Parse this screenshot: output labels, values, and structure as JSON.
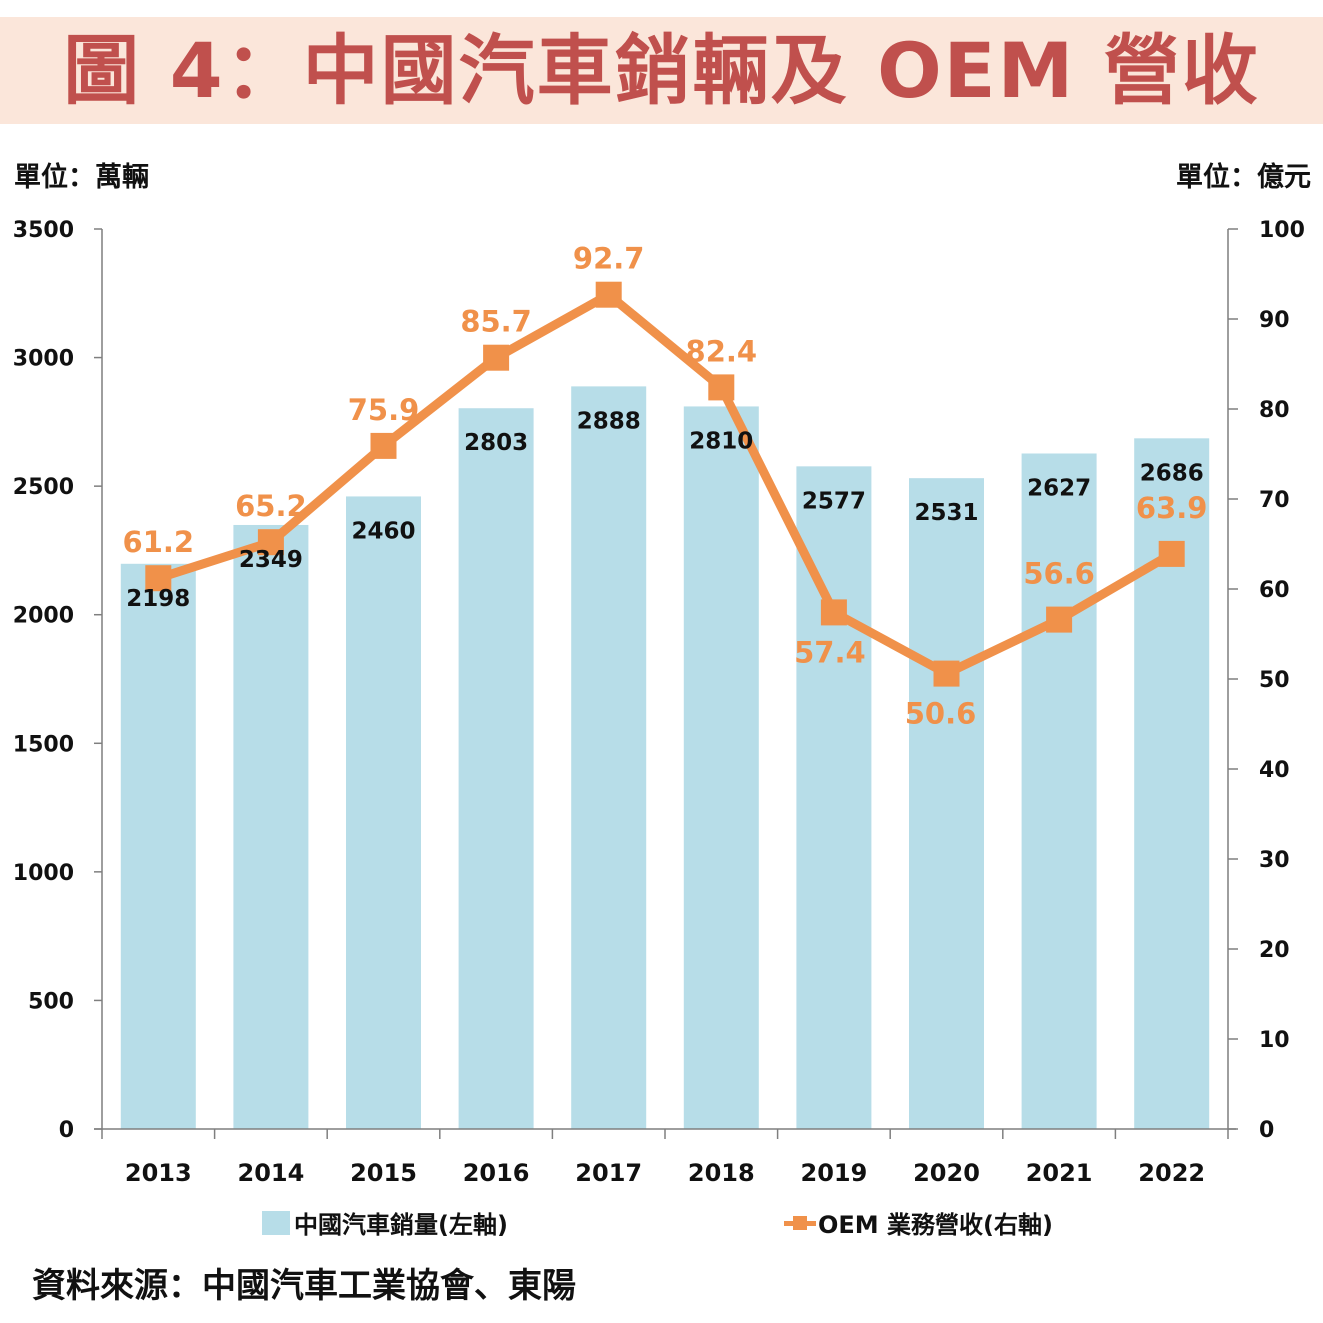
{
  "header": {
    "title": "圖 4：中國汽車銷輛及 OEM 營收",
    "unit_left": "單位：萬輛",
    "unit_right": "單位：億元"
  },
  "chart_data": {
    "type": "bar",
    "title": "圖 4：中國汽車銷輛及 OEM 營收",
    "categories": [
      "2013",
      "2014",
      "2015",
      "2016",
      "2017",
      "2018",
      "2019",
      "2020",
      "2021",
      "2022"
    ],
    "series": [
      {
        "name": "中國汽車銷量(左軸)",
        "type": "bar",
        "axis": "left",
        "color": "#b7dde8",
        "values": [
          2198,
          2349,
          2460,
          2803,
          2888,
          2810,
          2577,
          2531,
          2627,
          2686
        ]
      },
      {
        "name": "OEM 業務營收(右軸)",
        "type": "line",
        "axis": "right",
        "color": "#f0914a",
        "marker": "square",
        "values": [
          61.2,
          65.2,
          75.9,
          85.7,
          92.7,
          82.4,
          57.4,
          50.6,
          56.6,
          63.9
        ]
      }
    ],
    "ylabel_left": "單位：萬輛",
    "ylabel_right": "單位：億元",
    "ylim_left": [
      0,
      3500
    ],
    "ylim_right": [
      0,
      100
    ],
    "yticks_left": [
      0,
      500,
      1000,
      1500,
      2000,
      2500,
      3000,
      3500
    ],
    "yticks_right": [
      0,
      10,
      20,
      30,
      40,
      50,
      60,
      70,
      80,
      90,
      100
    ],
    "grid": false,
    "legend_position": "bottom"
  },
  "legend": {
    "bars": "中國汽車銷量(左軸)",
    "line": "OEM 業務營收(右軸)"
  },
  "footer": {
    "source": "資料來源：中國汽車工業協會、東陽"
  }
}
